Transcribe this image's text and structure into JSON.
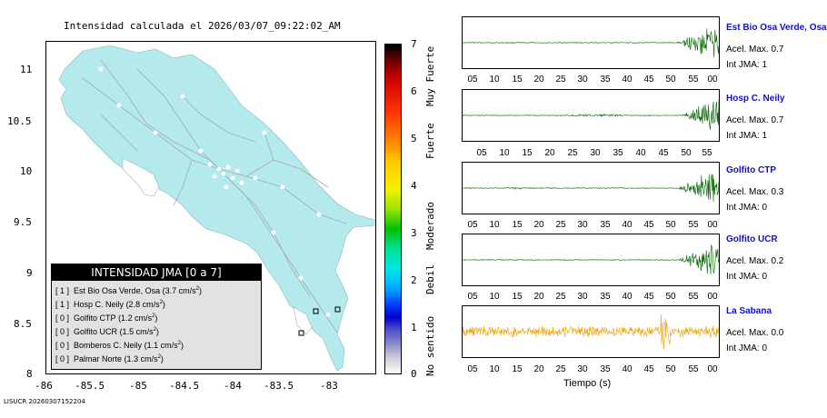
{
  "header": {
    "title": "Intensidad calculada el 2026/03/07_09:22:02_AM"
  },
  "footer": {
    "id_text": "LISUCR 20260307152204"
  },
  "map": {
    "land_color": "#b4eaec",
    "y_ticks": [
      "11",
      "10.5",
      "10",
      "9.5",
      "9",
      "8.5",
      "8"
    ],
    "x_ticks": [
      "-86",
      "-85.5",
      "-85",
      "-84.5",
      "-84",
      "-83.5",
      "-83"
    ]
  },
  "legend": {
    "heading": "INTENSIDAD JMA [0 a 7]",
    "rows": [
      {
        "level": "[ 1 ]",
        "name": "Est Bio Osa Verde, Osa",
        "value": "(3.7 cm/s",
        "exp": "2",
        "close": ")"
      },
      {
        "level": "[ 1 ]",
        "name": "Hosp C. Neily",
        "value": "(2.8 cm/s",
        "exp": "2",
        "close": ")"
      },
      {
        "level": "[ 0 ]",
        "name": "Golfito CTP",
        "value": "(1.2 cm/s",
        "exp": "2",
        "close": ")"
      },
      {
        "level": "[ 0 ]",
        "name": "Golfito UCR",
        "value": "(1.5 cm/s",
        "exp": "2",
        "close": ")"
      },
      {
        "level": "[ 0 ]",
        "name": "Bomberos C. Neily",
        "value": "(1.1 cm/s",
        "exp": "2",
        "close": ")"
      },
      {
        "level": "[ 0 ]",
        "name": "Palmar Norte",
        "value": "(1.3 cm/s",
        "exp": "2",
        "close": ")"
      }
    ]
  },
  "colorbar": {
    "ticks": [
      "7",
      "6",
      "5",
      "4",
      "3",
      "2",
      "1",
      "0"
    ],
    "words": [
      "Muy Fuerte",
      "Fuerte",
      "Moderado",
      "Debil",
      "No sentido"
    ]
  },
  "traces": {
    "tick_labels": [
      "05",
      "10",
      "15",
      "20",
      "25",
      "30",
      "35",
      "40",
      "45",
      "50",
      "55",
      "00"
    ],
    "tick_labels_b": [
      "05",
      "10",
      "15",
      "20",
      "25",
      "30",
      "35",
      "40",
      "45",
      "50",
      "55"
    ],
    "time_label": "Tiempo (s)",
    "stations": [
      {
        "name": "Est Bio Osa Verde, Osa",
        "acel": "Acel. Max. 0.7",
        "jma": "Int JMA: 1",
        "color": "#006400"
      },
      {
        "name": "Hosp C. Neily",
        "acel": "Acel. Max. 0.7",
        "jma": "Int JMA: 1",
        "color": "#006400"
      },
      {
        "name": "Golfito CTP",
        "acel": "Acel. Max. 0.3",
        "jma": "Int JMA: 0",
        "color": "#006400"
      },
      {
        "name": "Golfito UCR",
        "acel": "Acel. Max. 0.2",
        "jma": "Int JMA: 0",
        "color": "#006400"
      },
      {
        "name": "La Sabana",
        "acel": "Acel. Max. 0.0",
        "jma": "Int JMA: 0",
        "color": "#f0a000"
      }
    ]
  }
}
